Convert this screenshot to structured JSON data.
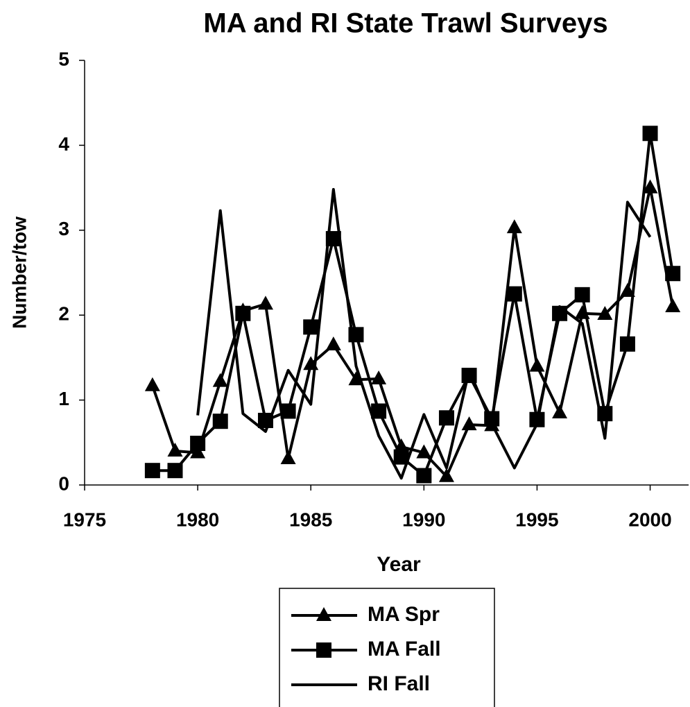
{
  "chart_data": {
    "type": "line",
    "title": "MA and RI State Trawl Surveys",
    "x_label": "Year",
    "y_label": "Number/tow",
    "x": [
      1978,
      1979,
      1980,
      1981,
      1982,
      1983,
      1984,
      1985,
      1986,
      1987,
      1988,
      1989,
      1990,
      1991,
      1992,
      1993,
      1994,
      1995,
      1996,
      1997,
      1998,
      1999,
      2000,
      2001
    ],
    "series": [
      {
        "name": "MA Spr",
        "color": "#000000",
        "marker": "triangle",
        "values": [
          1.17,
          0.4,
          0.38,
          1.22,
          2.05,
          2.13,
          0.31,
          1.42,
          1.65,
          1.24,
          1.25,
          0.45,
          0.38,
          0.1,
          0.71,
          0.7,
          3.03,
          1.4,
          0.85,
          2.02,
          2.01,
          2.28,
          3.5,
          2.1
        ]
      },
      {
        "name": "MA Fall",
        "color": "#000000",
        "marker": "square",
        "values": [
          0.17,
          0.17,
          0.49,
          0.75,
          2.02,
          0.76,
          0.87,
          1.86,
          2.9,
          1.77,
          0.87,
          0.33,
          0.11,
          0.79,
          1.29,
          0.78,
          2.25,
          0.77,
          2.02,
          2.24,
          0.84,
          1.66,
          4.14,
          2.49
        ]
      },
      {
        "name": "RI Fall",
        "color": "#000000",
        "marker": "none",
        "values": [
          null,
          null,
          0.82,
          3.23,
          0.84,
          0.63,
          1.35,
          0.95,
          3.48,
          1.4,
          0.58,
          0.08,
          0.83,
          0.2,
          1.35,
          0.72,
          0.2,
          0.72,
          2.1,
          1.9,
          0.55,
          3.33,
          2.92,
          null
        ]
      }
    ],
    "xlim": [
      1975,
      2001.7
    ],
    "xticks": [
      1975,
      1980,
      1985,
      1990,
      1995,
      2000
    ],
    "ylim": [
      0,
      5
    ],
    "yticks": [
      0,
      1,
      2,
      3,
      4,
      5
    ],
    "grid": false
  }
}
